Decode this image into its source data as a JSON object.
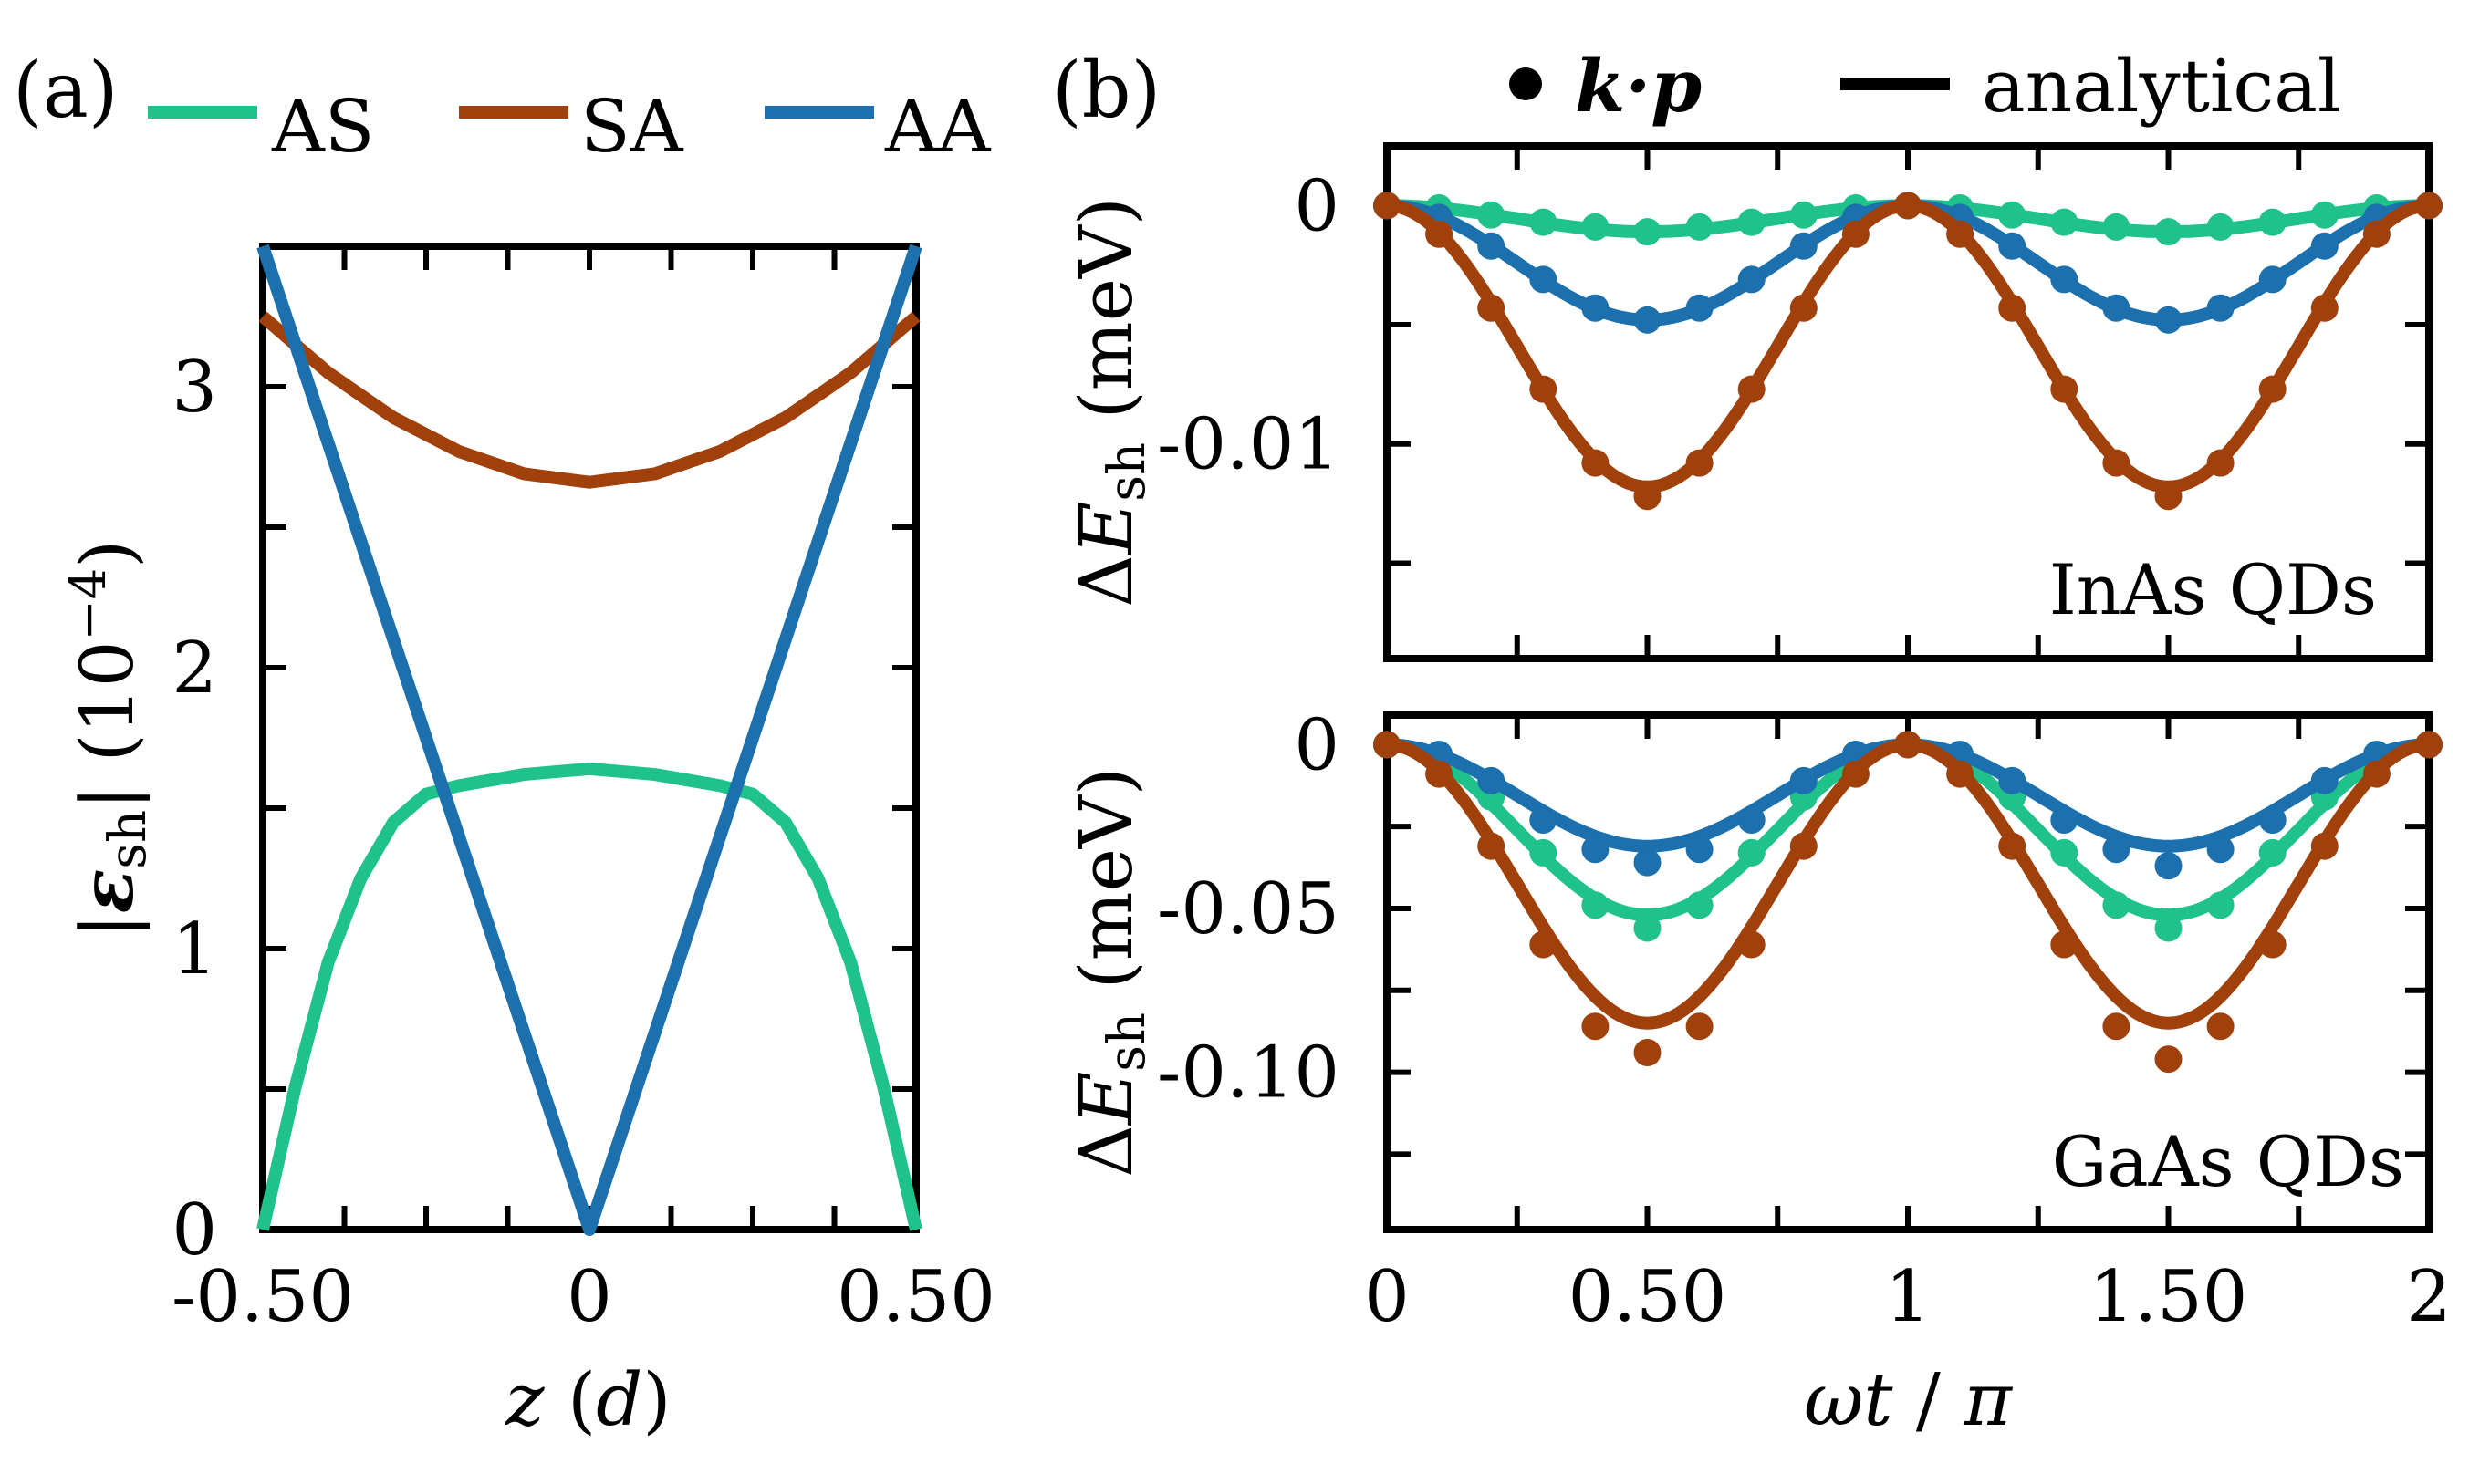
{
  "colors": {
    "AS": "#1fc28a",
    "SA": "#a0410b",
    "AA": "#1b70ad",
    "axis": "#000000"
  },
  "legend_a": {
    "items": [
      {
        "key": "AS",
        "label": "AS"
      },
      {
        "key": "SA",
        "label": "SA"
      },
      {
        "key": "AA",
        "label": "AA"
      }
    ]
  },
  "legend_b": {
    "kp_label": "k·p",
    "analytical_label": "analytical"
  },
  "panel_labels": {
    "a": "(a)",
    "b": "(b)"
  },
  "chart_data": [
    {
      "id": "a",
      "type": "line",
      "xlabel": "z (d)",
      "ylabel": "|ε_sh| (10^-4)",
      "ylabel_parts": {
        "bar_left": "|",
        "eps": "ε",
        "sub": "sh",
        "bar_right": "|",
        "unit_open": " (10",
        "exp": "−4",
        "unit_close": ")"
      },
      "xlabel_parts": {
        "var": "z",
        "open": " (",
        "unit": "d",
        "close": ")"
      },
      "xlim": [
        -0.5,
        0.5
      ],
      "ylim": [
        0,
        3.5
      ],
      "xticks": [
        {
          "value": -0.5,
          "label": "-0.50"
        },
        {
          "value": 0,
          "label": "0"
        },
        {
          "value": 0.5,
          "label": "0.50"
        }
      ],
      "xminor": [
        -0.375,
        -0.25,
        -0.125,
        0.125,
        0.25,
        0.375
      ],
      "yticks": [
        {
          "value": 0,
          "label": "0"
        },
        {
          "value": 1,
          "label": "1"
        },
        {
          "value": 2,
          "label": "2"
        },
        {
          "value": 3,
          "label": "3"
        }
      ],
      "yminor": [
        0.5,
        1.5,
        2.5
      ],
      "series": [
        {
          "name": "AS",
          "x": [
            -0.5,
            -0.45,
            -0.4,
            -0.35,
            -0.3,
            -0.25,
            -0.2,
            -0.15,
            -0.1,
            -0.05,
            0,
            0.05,
            0.1,
            0.15,
            0.2,
            0.25,
            0.3,
            0.35,
            0.4,
            0.45,
            0.5
          ],
          "y": [
            0.0,
            0.51,
            0.95,
            1.25,
            1.45,
            1.55,
            1.58,
            1.6,
            1.62,
            1.63,
            1.64,
            1.63,
            1.62,
            1.6,
            1.58,
            1.55,
            1.45,
            1.25,
            0.95,
            0.51,
            0.0
          ]
        },
        {
          "name": "SA",
          "x": [
            -0.5,
            -0.4,
            -0.3,
            -0.2,
            -0.1,
            0,
            0.1,
            0.2,
            0.3,
            0.4,
            0.5
          ],
          "y": [
            3.25,
            3.05,
            2.89,
            2.77,
            2.69,
            2.66,
            2.69,
            2.77,
            2.89,
            3.05,
            3.25
          ]
        },
        {
          "name": "AA",
          "x": [
            -0.5,
            0,
            0.5
          ],
          "y": [
            3.5,
            0.0,
            3.5
          ]
        }
      ]
    },
    {
      "id": "b-top",
      "type": "line",
      "annotation": "InAs QDs",
      "ylabel_parts": {
        "delta": "Δ",
        "E": "E",
        "sub": "sh",
        "unit": " (meV)"
      },
      "xlim": [
        0,
        2
      ],
      "ylim": [
        -0.019,
        0.0025
      ],
      "yticks": [
        {
          "value": 0,
          "label": "0"
        },
        {
          "value": -0.01,
          "label": "-0.01"
        }
      ],
      "ytick_marks": [
        0,
        -0.005,
        -0.01,
        -0.015
      ],
      "xminor": [
        0.25,
        0.5,
        0.75,
        1.0,
        1.25,
        1.5,
        1.75
      ],
      "kp_x": [
        0,
        0.1,
        0.2,
        0.3,
        0.4,
        0.5,
        0.6,
        0.7,
        0.8,
        0.9,
        1.0,
        1.1,
        1.2,
        1.3,
        1.4,
        1.5,
        1.6,
        1.7,
        1.8,
        1.9,
        2.0
      ],
      "series": [
        {
          "name": "AS",
          "amplitude": -0.0011,
          "kp_y": [
            0,
            -0.0001,
            -0.0004,
            -0.0007,
            -0.0009,
            -0.0011,
            -0.0009,
            -0.0007,
            -0.0004,
            -0.0001,
            0,
            -0.0001,
            -0.0004,
            -0.0007,
            -0.0009,
            -0.0011,
            -0.0009,
            -0.0007,
            -0.0004,
            -0.0001,
            0
          ]
        },
        {
          "name": "AA",
          "amplitude": -0.0048,
          "kp_y": [
            0,
            -0.0005,
            -0.0017,
            -0.0031,
            -0.0043,
            -0.0048,
            -0.0043,
            -0.0031,
            -0.0017,
            -0.0005,
            0,
            -0.0005,
            -0.0017,
            -0.0031,
            -0.0043,
            -0.0048,
            -0.0043,
            -0.0031,
            -0.0017,
            -0.0005,
            0
          ]
        },
        {
          "name": "SA",
          "amplitude": -0.0118,
          "kp_y": [
            0,
            -0.0012,
            -0.0043,
            -0.0077,
            -0.0108,
            -0.0122,
            -0.0108,
            -0.0077,
            -0.0043,
            -0.0012,
            0,
            -0.0012,
            -0.0043,
            -0.0077,
            -0.0108,
            -0.0122,
            -0.0108,
            -0.0077,
            -0.0043,
            -0.0012,
            0
          ]
        }
      ]
    },
    {
      "id": "b-bottom",
      "type": "line",
      "annotation": "GaAs QDs",
      "xlabel": "ωt / π",
      "xlabel_parts": {
        "omega": "ω",
        "t": "t",
        "slash": " / ",
        "pi": "π"
      },
      "ylabel_parts": {
        "delta": "Δ",
        "E": "E",
        "sub": "sh",
        "unit": " (meV)"
      },
      "xlim": [
        0,
        2
      ],
      "ylim": [
        -0.148,
        0.009
      ],
      "xticks": [
        {
          "value": 0,
          "label": "0"
        },
        {
          "value": 0.5,
          "label": "0.50"
        },
        {
          "value": 1,
          "label": "1"
        },
        {
          "value": 1.5,
          "label": "1.50"
        },
        {
          "value": 2,
          "label": "2"
        }
      ],
      "xminor": [
        0.25,
        0.5,
        0.75,
        1.0,
        1.25,
        1.5,
        1.75
      ],
      "yticks": [
        {
          "value": 0,
          "label": "0"
        },
        {
          "value": -0.05,
          "label": "-0.05"
        },
        {
          "value": -0.1,
          "label": "-0.10"
        }
      ],
      "ytick_marks": [
        0,
        -0.025,
        -0.05,
        -0.075,
        -0.1,
        -0.125
      ],
      "kp_x": [
        0,
        0.1,
        0.2,
        0.3,
        0.4,
        0.5,
        0.6,
        0.7,
        0.8,
        0.9,
        1.0,
        1.1,
        1.2,
        1.3,
        1.4,
        1.5,
        1.6,
        1.7,
        1.8,
        1.9,
        2.0
      ],
      "series": [
        {
          "name": "AS",
          "amplitude": -0.052,
          "kp_y": [
            0,
            -0.003,
            -0.016,
            -0.033,
            -0.049,
            -0.056,
            -0.049,
            -0.033,
            -0.016,
            -0.003,
            0,
            -0.003,
            -0.016,
            -0.033,
            -0.049,
            -0.056,
            -0.049,
            -0.033,
            -0.016,
            -0.003,
            0
          ]
        },
        {
          "name": "AA",
          "amplitude": -0.031,
          "kp_y": [
            0,
            -0.003,
            -0.011,
            -0.023,
            -0.032,
            -0.036,
            -0.032,
            -0.023,
            -0.011,
            -0.003,
            0,
            -0.003,
            -0.011,
            -0.023,
            -0.032,
            -0.037,
            -0.032,
            -0.023,
            -0.011,
            -0.003,
            0
          ]
        },
        {
          "name": "SA",
          "amplitude": -0.085,
          "kp_y": [
            0,
            -0.009,
            -0.031,
            -0.061,
            -0.086,
            -0.094,
            -0.086,
            -0.061,
            -0.031,
            -0.009,
            0,
            -0.009,
            -0.031,
            -0.061,
            -0.086,
            -0.096,
            -0.086,
            -0.061,
            -0.031,
            -0.009,
            0
          ]
        }
      ]
    }
  ]
}
